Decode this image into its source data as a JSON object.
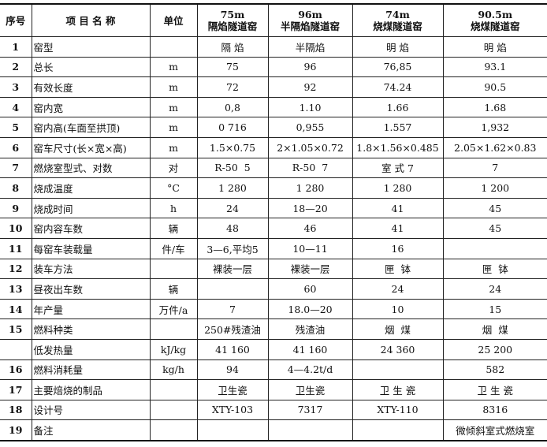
{
  "headers": [
    "序号",
    "项 目 名 称",
    "单位",
    "75m\n隔焰隧道窑",
    "96m\n半隔焰隧道窑",
    "74m\n烧煤隧道窑",
    "90.5m\n烧煤隧道窑"
  ],
  "rows": [
    [
      "1",
      "窑型",
      "",
      "隔 焰",
      "半隔焰",
      "明 焰",
      "明 焰"
    ],
    [
      "2",
      "总长",
      "m",
      "75",
      "96",
      "76,85",
      "93.1"
    ],
    [
      "3",
      "有效长度",
      "m",
      "72",
      "92",
      "74.24",
      "90.5"
    ],
    [
      "4",
      "窑内宽",
      "m",
      "0,8",
      "1.10",
      "1.66",
      "1.68"
    ],
    [
      "5",
      "窑内高(车面至拱顶)",
      "m",
      "0 716",
      "0,955",
      "1.557",
      "1,932"
    ],
    [
      "6",
      "窑车尺寸(长×宽×高)",
      "m",
      "1.5×0.75",
      "2×1.05×0.72",
      "1.8×1.56×0.485",
      "2.05×1.62×0.83"
    ],
    [
      "7",
      "燃烧室型式、对数",
      "对",
      "R-50  5",
      "R-50  7",
      "室 式 7",
      "7"
    ],
    [
      "8",
      "烧成温度",
      "°C",
      "1 280",
      "1 280",
      "1 280",
      "1 200"
    ],
    [
      "9",
      "烧成时间",
      "h",
      "24",
      "18—20",
      "41",
      "45"
    ],
    [
      "10",
      "窑内容车数",
      "辆",
      "48",
      "46",
      "41",
      "45"
    ],
    [
      "11",
      "每窑车装载量",
      "件/车",
      "3—6,平均5",
      "10—11",
      "16",
      ""
    ],
    [
      "12",
      "装车方法",
      "",
      "裸装一层",
      "裸装一层",
      "匣  钵",
      "匣  钵"
    ],
    [
      "13",
      "昼夜出车数",
      "辆",
      "",
      "60",
      "24",
      "24"
    ],
    [
      "14",
      "年产量",
      "万件/a",
      "7",
      "18.0—20",
      "10",
      "15"
    ],
    [
      "15",
      "燃料种类",
      "",
      "250#残渣油",
      "残渣油",
      "烟  煤",
      "烟  煤"
    ],
    [
      "",
      "低发热量",
      "kJ/kg",
      "41 160",
      "41 160",
      "24 360",
      "25 200"
    ],
    [
      "16",
      "燃料消耗量",
      "kg/h",
      "94",
      "4—4.2t/d",
      "",
      "582"
    ],
    [
      "17",
      "主要焙烧的制品",
      "",
      "卫生瓷",
      "卫生瓷",
      "卫 生 瓷",
      "卫 生 瓷"
    ],
    [
      "18",
      "设计号",
      "",
      "XTY-103",
      "7317",
      "XTY-110",
      "8316"
    ],
    [
      "19",
      "备注",
      "",
      "",
      "",
      "",
      "微倾斜室式燃烧室"
    ]
  ]
}
